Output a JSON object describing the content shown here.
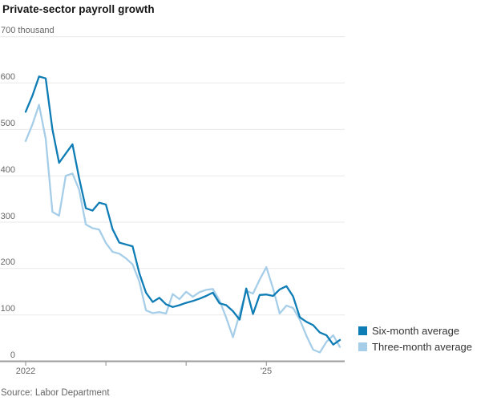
{
  "title": "Private-sector payroll growth",
  "y_axis": {
    "top_label": "700 thousand",
    "ticks": [
      700,
      600,
      500,
      400,
      300,
      200,
      100,
      0
    ]
  },
  "x_axis": {
    "first_label": "2022",
    "last_label": "'25",
    "tick_month_positions": [
      0,
      12,
      24,
      36
    ]
  },
  "source": "Source: Labor Department",
  "colors": {
    "six_month_line": "#0e7cb5",
    "three_month_line": "#a6cee8",
    "grid": "#e9e9e9",
    "axis": "#9d9d9d",
    "label_text": "#666666",
    "title_text": "#141414"
  },
  "chart_data": {
    "type": "line",
    "title": "Private-sector payroll growth",
    "unit": "thousand",
    "ylim": [
      0,
      700
    ],
    "y_ticks": [
      0,
      100,
      200,
      300,
      400,
      500,
      600,
      700
    ],
    "x_tick_labels": [
      "2022",
      "",
      "",
      "'25"
    ],
    "x_tick_month_positions": [
      0,
      12,
      24,
      36
    ],
    "x_start_year_label": "2022",
    "grid": "horizontal",
    "legend_position": "right-bottom",
    "series": [
      {
        "name": "Six-month average",
        "color": "#0e7cb5",
        "values": [
          538,
          572,
          614,
          610,
          500,
          428,
          448,
          468,
          395,
          330,
          325,
          342,
          338,
          285,
          256,
          252,
          248,
          190,
          148,
          128,
          137,
          123,
          117,
          121,
          126,
          130,
          135,
          141,
          148,
          125,
          121,
          108,
          90,
          157,
          102,
          143,
          144,
          141,
          155,
          162,
          140,
          95,
          85,
          78,
          62,
          56,
          36,
          46
        ]
      },
      {
        "name": "Three-month average",
        "color": "#a6cee8",
        "values": [
          475,
          510,
          553,
          480,
          322,
          314,
          400,
          405,
          370,
          295,
          287,
          284,
          255,
          236,
          232,
          222,
          209,
          172,
          110,
          104,
          106,
          103,
          145,
          134,
          150,
          139,
          149,
          154,
          156,
          131,
          94,
          52,
          102,
          152,
          146,
          176,
          203,
          157,
          103,
          120,
          115,
          90,
          55,
          25,
          19,
          42,
          56,
          31
        ]
      }
    ]
  }
}
